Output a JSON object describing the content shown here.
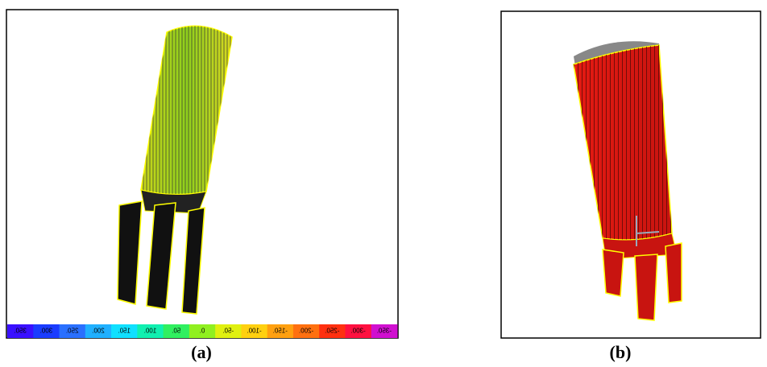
{
  "panels": [
    {
      "caption": "(a)",
      "colorbar": {
        "labels": [
          "350.",
          "300.",
          "250.",
          "200.",
          "150.",
          "100.",
          "50.",
          "0.",
          "-50.",
          "-100.",
          "-150.",
          "-200.",
          "-250.",
          "-300.",
          "-350."
        ]
      }
    },
    {
      "caption": "(b)"
    }
  ]
}
